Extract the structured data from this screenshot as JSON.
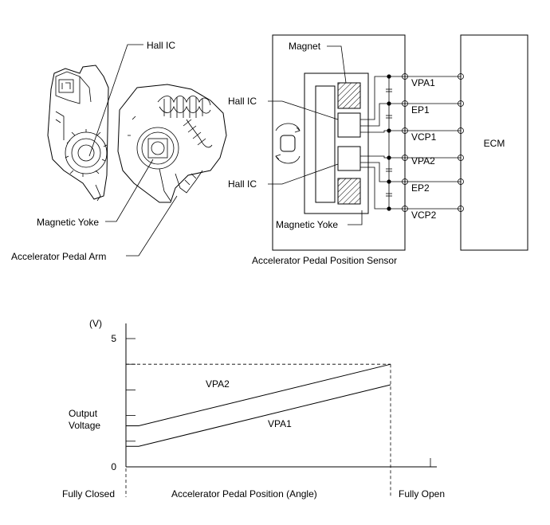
{
  "parts_view": {
    "hall_ic_label": "Hall IC",
    "magnetic_yoke_label": "Magnetic Yoke",
    "pedal_arm_label": "Accelerator Pedal Arm"
  },
  "circuit": {
    "magnet_label": "Magnet",
    "hall_ic_top_label": "Hall IC",
    "hall_ic_bottom_label": "Hall IC",
    "magnetic_yoke_label": "Magnetic Yoke",
    "sensor_caption": "Accelerator Pedal Position Sensor",
    "ecm_label": "ECM",
    "terminals": [
      "VPA1",
      "EP1",
      "VCP1",
      "VPA2",
      "EP2",
      "VCP2"
    ]
  },
  "graph": {
    "unit_label": "(V)",
    "y_tick_top": "5",
    "y_tick_zero": "0",
    "y_label_line1": "Output",
    "y_label_line2": "Voltage",
    "x_label": "Accelerator Pedal Position (Angle)",
    "x_start_label": "Fully Closed",
    "x_end_label": "Fully Open",
    "series": [
      {
        "name": "VPA2",
        "start_v": 1.6,
        "end_v": 4.0
      },
      {
        "name": "VPA1",
        "start_v": 0.8,
        "end_v": 3.2
      }
    ],
    "ymax": 5
  }
}
